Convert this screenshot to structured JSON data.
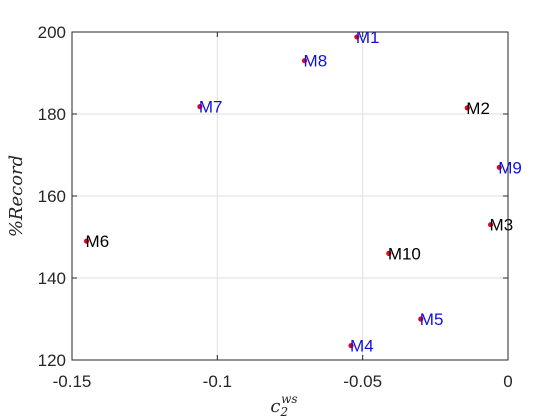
{
  "chart_data": {
    "type": "scatter",
    "title": "",
    "xlabel_base": "c",
    "xlabel_sub": "2",
    "xlabel_sup": "ws",
    "ylabel": "%Record",
    "xlim": [
      -0.15,
      0
    ],
    "ylim": [
      120,
      200
    ],
    "xticks": [
      -0.15,
      -0.1,
      -0.05,
      0
    ],
    "xtick_labels": [
      "-0.15",
      "-0.1",
      "-0.05",
      "0"
    ],
    "yticks": [
      120,
      140,
      160,
      180,
      200
    ],
    "ytick_labels": [
      "120",
      "140",
      "160",
      "180",
      "200"
    ],
    "grid": true,
    "marker_color": "#e8001c",
    "points": [
      {
        "label": "M1",
        "x": -0.052,
        "y": 198.8,
        "label_color": "#1010e0"
      },
      {
        "label": "M2",
        "x": -0.014,
        "y": 181.5,
        "label_color": "#000000"
      },
      {
        "label": "M3",
        "x": -0.006,
        "y": 153.0,
        "label_color": "#000000"
      },
      {
        "label": "M4",
        "x": -0.054,
        "y": 123.5,
        "label_color": "#1010e0"
      },
      {
        "label": "M5",
        "x": -0.03,
        "y": 130.0,
        "label_color": "#1010e0"
      },
      {
        "label": "M6",
        "x": -0.145,
        "y": 149.0,
        "label_color": "#000000"
      },
      {
        "label": "M7",
        "x": -0.106,
        "y": 181.8,
        "label_color": "#1010e0"
      },
      {
        "label": "M8",
        "x": -0.07,
        "y": 193.0,
        "label_color": "#1010e0"
      },
      {
        "label": "M9",
        "x": -0.003,
        "y": 167.0,
        "label_color": "#1010e0"
      },
      {
        "label": "M10",
        "x": -0.041,
        "y": 146.0,
        "label_color": "#000000"
      }
    ]
  }
}
